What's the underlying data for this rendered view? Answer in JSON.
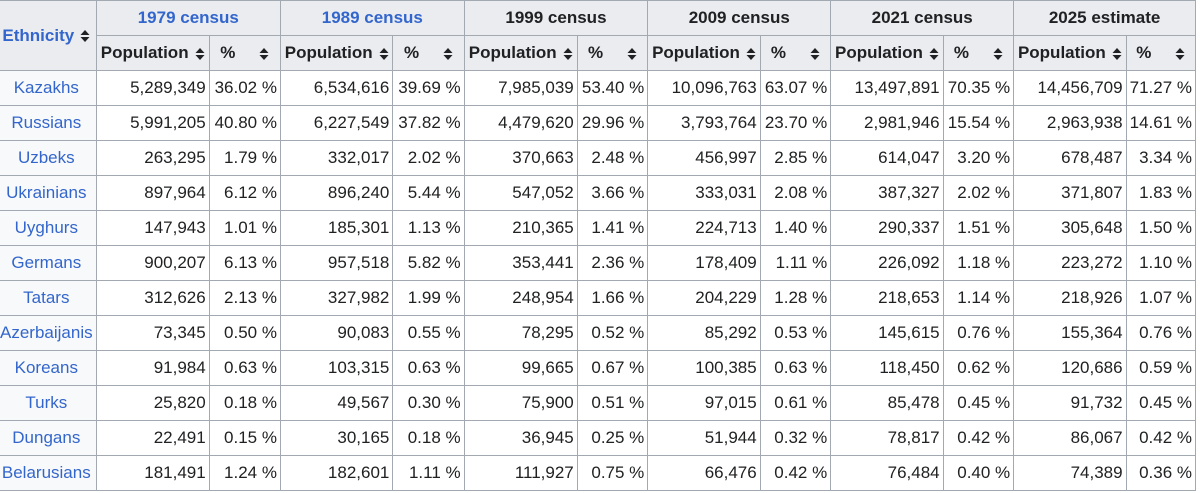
{
  "table": {
    "ethnicity_header": "Ethnicity",
    "groups": [
      {
        "label": "1979 census",
        "linked": true
      },
      {
        "label": "1989 census",
        "linked": true
      },
      {
        "label": "1999 census",
        "linked": false
      },
      {
        "label": "2009 census",
        "linked": false
      },
      {
        "label": "2021 census",
        "linked": false
      },
      {
        "label": "2025 estimate",
        "linked": false
      }
    ],
    "sub_headers": {
      "population": "Population",
      "percent": "%"
    },
    "rows": [
      {
        "ethnicity": "Kazakhs",
        "values": [
          [
            "5,289,349",
            "36.02 %"
          ],
          [
            "6,534,616",
            "39.69 %"
          ],
          [
            "7,985,039",
            "53.40 %"
          ],
          [
            "10,096,763",
            "63.07 %"
          ],
          [
            "13,497,891",
            "70.35 %"
          ],
          [
            "14,456,709",
            "71.27 %"
          ]
        ]
      },
      {
        "ethnicity": "Russians",
        "values": [
          [
            "5,991,205",
            "40.80 %"
          ],
          [
            "6,227,549",
            "37.82 %"
          ],
          [
            "4,479,620",
            "29.96 %"
          ],
          [
            "3,793,764",
            "23.70 %"
          ],
          [
            "2,981,946",
            "15.54 %"
          ],
          [
            "2,963,938",
            "14.61 %"
          ]
        ]
      },
      {
        "ethnicity": "Uzbeks",
        "values": [
          [
            "263,295",
            "1.79 %"
          ],
          [
            "332,017",
            "2.02 %"
          ],
          [
            "370,663",
            "2.48 %"
          ],
          [
            "456,997",
            "2.85 %"
          ],
          [
            "614,047",
            "3.20 %"
          ],
          [
            "678,487",
            "3.34 %"
          ]
        ]
      },
      {
        "ethnicity": "Ukrainians",
        "values": [
          [
            "897,964",
            "6.12 %"
          ],
          [
            "896,240",
            "5.44 %"
          ],
          [
            "547,052",
            "3.66 %"
          ],
          [
            "333,031",
            "2.08 %"
          ],
          [
            "387,327",
            "2.02 %"
          ],
          [
            "371,807",
            "1.83 %"
          ]
        ]
      },
      {
        "ethnicity": "Uyghurs",
        "values": [
          [
            "147,943",
            "1.01 %"
          ],
          [
            "185,301",
            "1.13 %"
          ],
          [
            "210,365",
            "1.41 %"
          ],
          [
            "224,713",
            "1.40 %"
          ],
          [
            "290,337",
            "1.51 %"
          ],
          [
            "305,648",
            "1.50 %"
          ]
        ]
      },
      {
        "ethnicity": "Germans",
        "values": [
          [
            "900,207",
            "6.13 %"
          ],
          [
            "957,518",
            "5.82 %"
          ],
          [
            "353,441",
            "2.36 %"
          ],
          [
            "178,409",
            "1.11 %"
          ],
          [
            "226,092",
            "1.18 %"
          ],
          [
            "223,272",
            "1.10 %"
          ]
        ]
      },
      {
        "ethnicity": "Tatars",
        "values": [
          [
            "312,626",
            "2.13 %"
          ],
          [
            "327,982",
            "1.99 %"
          ],
          [
            "248,954",
            "1.66 %"
          ],
          [
            "204,229",
            "1.28 %"
          ],
          [
            "218,653",
            "1.14 %"
          ],
          [
            "218,926",
            "1.07 %"
          ]
        ]
      },
      {
        "ethnicity": "Azerbaijanis",
        "values": [
          [
            "73,345",
            "0.50 %"
          ],
          [
            "90,083",
            "0.55 %"
          ],
          [
            "78,295",
            "0.52 %"
          ],
          [
            "85,292",
            "0.53 %"
          ],
          [
            "145,615",
            "0.76 %"
          ],
          [
            "155,364",
            "0.76 %"
          ]
        ]
      },
      {
        "ethnicity": "Koreans",
        "values": [
          [
            "91,984",
            "0.63 %"
          ],
          [
            "103,315",
            "0.63 %"
          ],
          [
            "99,665",
            "0.67 %"
          ],
          [
            "100,385",
            "0.63 %"
          ],
          [
            "118,450",
            "0.62 %"
          ],
          [
            "120,686",
            "0.59 %"
          ]
        ]
      },
      {
        "ethnicity": "Turks",
        "values": [
          [
            "25,820",
            "0.18 %"
          ],
          [
            "49,567",
            "0.30 %"
          ],
          [
            "75,900",
            "0.51 %"
          ],
          [
            "97,015",
            "0.61 %"
          ],
          [
            "85,478",
            "0.45 %"
          ],
          [
            "91,732",
            "0.45 %"
          ]
        ]
      },
      {
        "ethnicity": "Dungans",
        "values": [
          [
            "22,491",
            "0.15 %"
          ],
          [
            "30,165",
            "0.18 %"
          ],
          [
            "36,945",
            "0.25 %"
          ],
          [
            "51,944",
            "0.32 %"
          ],
          [
            "78,817",
            "0.42 %"
          ],
          [
            "86,067",
            "0.42 %"
          ]
        ]
      },
      {
        "ethnicity": "Belarusians",
        "values": [
          [
            "181,491",
            "1.24 %"
          ],
          [
            "182,601",
            "1.11 %"
          ],
          [
            "111,927",
            "0.75 %"
          ],
          [
            "66,476",
            "0.42 %"
          ],
          [
            "76,484",
            "0.40 %"
          ],
          [
            "74,389",
            "0.36 %"
          ]
        ]
      }
    ]
  },
  "colors": {
    "link": "#3366cc",
    "header_bg": "#eaecf0",
    "border": "#a2a9b1"
  },
  "icons": {
    "sort": "sort-updown-icon"
  }
}
